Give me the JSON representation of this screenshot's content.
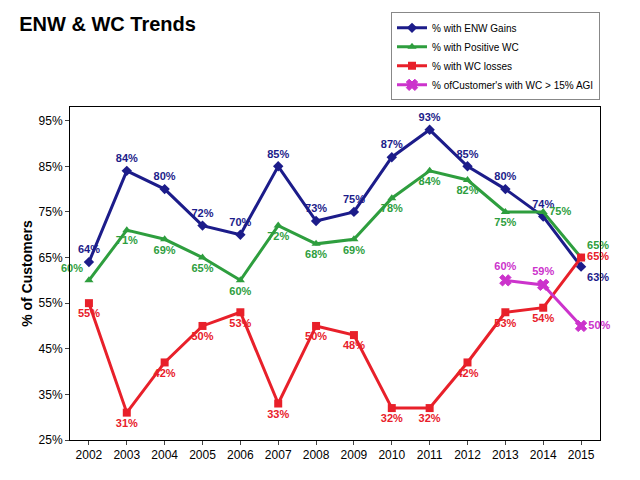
{
  "chart_data": {
    "type": "line",
    "title": "ENW & WC Trends",
    "y_label": "% of Customers",
    "x": [
      2002,
      2003,
      2004,
      2005,
      2006,
      2007,
      2008,
      2009,
      2010,
      2011,
      2012,
      2013,
      2014,
      2015
    ],
    "xlim": [
      2001.5,
      2015.5
    ],
    "xticks": [
      2002,
      2003,
      2004,
      2005,
      2006,
      2007,
      2008,
      2009,
      2010,
      2011,
      2012,
      2013,
      2014,
      2015
    ],
    "ylim": [
      25,
      98
    ],
    "yticks": [
      {
        "value": 25,
        "label": "25%"
      },
      {
        "value": 35,
        "label": "35%"
      },
      {
        "value": 45,
        "label": "45%"
      },
      {
        "value": 55,
        "label": "55%"
      },
      {
        "value": 65,
        "label": "65%"
      },
      {
        "value": 75,
        "label": "75%"
      },
      {
        "value": 85,
        "label": "85%"
      },
      {
        "value": 95,
        "label": "95%"
      }
    ],
    "grid": false,
    "legend": "top right",
    "data_labels": true,
    "series": [
      {
        "name": "% with ENW Gains",
        "color": "#1c1c8a",
        "marker": "diamond",
        "line_style": "solid",
        "values": [
          64,
          84,
          80,
          72,
          70,
          85,
          73,
          75,
          87,
          93,
          85,
          80,
          74,
          63
        ],
        "value_labels": [
          "64%",
          "84%",
          "80%",
          "72%",
          "70%",
          "85%",
          "73%",
          "75%",
          "87%",
          "93%",
          "85%",
          "80%",
          "74%",
          "63%"
        ]
      },
      {
        "name": "% with Positive WC",
        "color": "#2e9e3e",
        "marker": "triangle-up",
        "line_style": "solid",
        "values": [
          60,
          71,
          69,
          65,
          60,
          72,
          68,
          69,
          78,
          84,
          82,
          75,
          75,
          65
        ],
        "value_labels": [
          "60%",
          "71%",
          "69%",
          "65%",
          "60%",
          "72%",
          "68%",
          "69%",
          "78%",
          "84%",
          "82%",
          "75%",
          "75%",
          "65%"
        ]
      },
      {
        "name": "% with WC losses",
        "color": "#e8202a",
        "marker": "square",
        "line_style": "solid",
        "values": [
          55,
          31,
          42,
          50,
          53,
          33,
          50,
          48,
          32,
          32,
          42,
          53,
          54,
          65
        ],
        "value_labels": [
          "55%",
          "31%",
          "42%",
          "50%",
          "53%",
          "33%",
          "50%",
          "48%",
          "32%",
          "32%",
          "42%",
          "53%",
          "54%",
          "65%"
        ]
      },
      {
        "name": "% ofCustomer's with WC > 15% AGI",
        "color": "#cc33cc",
        "marker": "x",
        "line_style": "solid",
        "values": [
          null,
          null,
          null,
          null,
          null,
          null,
          null,
          null,
          null,
          null,
          null,
          60,
          59,
          50
        ],
        "value_labels": [
          null,
          null,
          null,
          null,
          null,
          null,
          null,
          null,
          null,
          null,
          null,
          "60%",
          "59%",
          "50%"
        ]
      }
    ]
  }
}
